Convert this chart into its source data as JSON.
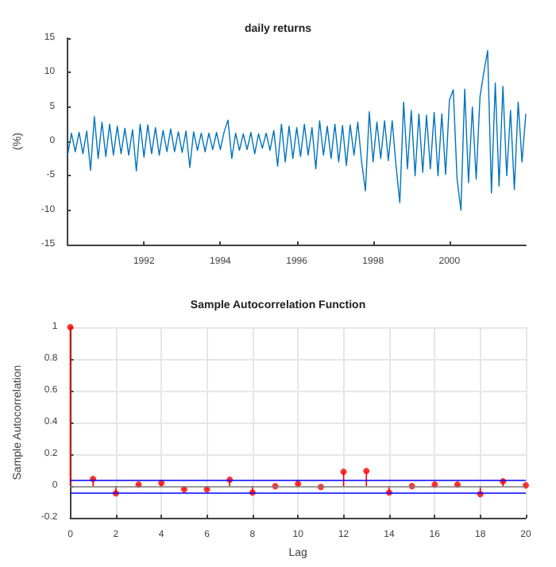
{
  "chart_data": [
    {
      "type": "line",
      "title": "daily returns",
      "ylabel": "(%)",
      "x": [
        1990,
        1990.1,
        1990.2,
        1990.3,
        1990.4,
        1990.5,
        1990.6,
        1990.7,
        1990.8,
        1990.9,
        1991,
        1991.1,
        1991.2,
        1991.3,
        1991.4,
        1991.5,
        1991.6,
        1991.7,
        1991.8,
        1991.9,
        1992,
        1992.1,
        1992.2,
        1992.3,
        1992.4,
        1992.5,
        1992.6,
        1992.7,
        1992.8,
        1992.9,
        1993,
        1993.1,
        1993.2,
        1993.3,
        1993.4,
        1993.5,
        1993.6,
        1993.7,
        1993.8,
        1993.9,
        1994,
        1994.1,
        1994.2,
        1994.3,
        1994.4,
        1994.5,
        1994.6,
        1994.7,
        1994.8,
        1994.9,
        1995,
        1995.1,
        1995.2,
        1995.3,
        1995.4,
        1995.5,
        1995.6,
        1995.7,
        1995.8,
        1995.9,
        1996,
        1996.1,
        1996.2,
        1996.3,
        1996.4,
        1996.5,
        1996.6,
        1996.7,
        1996.8,
        1996.9,
        1997,
        1997.1,
        1997.2,
        1997.3,
        1997.4,
        1997.5,
        1997.6,
        1997.7,
        1997.8,
        1997.9,
        1998,
        1998.1,
        1998.2,
        1998.3,
        1998.4,
        1998.5,
        1998.6,
        1998.7,
        1998.8,
        1998.9,
        1999,
        1999.1,
        1999.2,
        1999.3,
        1999.4,
        1999.5,
        1999.6,
        1999.7,
        1999.8,
        1999.9,
        2000,
        2000.1,
        2000.2,
        2000.3,
        2000.4,
        2000.5,
        2000.6,
        2000.7,
        2000.8,
        2000.9,
        2001,
        2001.1,
        2001.2,
        2001.3,
        2001.4,
        2001.5,
        2001.6,
        2001.7,
        2001.8,
        2001.9,
        2002
      ],
      "series": [
        {
          "color": "#0072bd",
          "values": [
            -2,
            1.2,
            -1.5,
            1.3,
            -1.8,
            1.5,
            -4.2,
            3.6,
            -2.5,
            2.8,
            -2.2,
            2.5,
            -2,
            2.2,
            -1.8,
            1.9,
            -2,
            1.7,
            -4.3,
            2.5,
            -2.3,
            2.4,
            -1.8,
            2,
            -2,
            1.6,
            -1.5,
            1.8,
            -1.5,
            1.4,
            -1.6,
            1.5,
            -3.8,
            1.4,
            -1.3,
            1.2,
            -1.5,
            1.2,
            -1.2,
            1.3,
            -1.2,
            1.4,
            3.1,
            -2.5,
            1.2,
            -1.3,
            1.1,
            -1.2,
            1.3,
            -1.8,
            1.1,
            -1,
            1.2,
            -1.3,
            1.6,
            -3.6,
            2.5,
            -3,
            2.2,
            -2.5,
            2,
            -2.2,
            2.5,
            -2,
            2,
            -4,
            3,
            -2,
            2.2,
            -2.5,
            2.5,
            -3,
            2.3,
            -3.5,
            2.4,
            -2,
            2.8,
            -3,
            -7.2,
            4.3,
            -3,
            2.8,
            -2.5,
            3,
            -2.8,
            3,
            -3.5,
            -8.9,
            5.7,
            -4,
            4.5,
            -5,
            4,
            -4.5,
            3.8,
            -4,
            4.2,
            -5,
            4,
            -4.8,
            6,
            7.5,
            -5.5,
            -10,
            7.6,
            -6,
            5,
            -5.5,
            6.5,
            10,
            13.2,
            -7.5,
            8.5,
            -6.5,
            8,
            -5,
            4.5,
            -7,
            5.7,
            -3,
            4
          ]
        }
      ],
      "xlim": [
        1990,
        2002
      ],
      "xticks": [
        1992,
        1994,
        1996,
        1998,
        2000
      ],
      "ylim": [
        -15,
        15
      ],
      "yticks": [
        -15,
        -10,
        -5,
        0,
        5,
        10,
        15
      ],
      "grid": false,
      "marker": "none",
      "line_style": "solid"
    },
    {
      "type": "lollipop",
      "title": "Sample Autocorrelation Function",
      "xlabel": "Lag",
      "ylabel": "Sample Autocorrelation",
      "x": [
        0,
        1,
        2,
        3,
        4,
        5,
        6,
        7,
        8,
        9,
        10,
        11,
        12,
        13,
        14,
        15,
        16,
        17,
        18,
        19,
        20
      ],
      "series": [
        {
          "color": "#ff0000",
          "values": [
            1,
            0.045,
            -0.045,
            0.01,
            0.02,
            -0.02,
            -0.02,
            0.04,
            -0.04,
            0,
            0.015,
            -0.005,
            0.09,
            0.095,
            -0.04,
            0,
            0.01,
            0.01,
            -0.05,
            0.03,
            0.005
          ]
        }
      ],
      "xlim": [
        0,
        20
      ],
      "xticks": [
        0,
        2,
        4,
        6,
        8,
        10,
        12,
        14,
        16,
        18,
        20
      ],
      "ylim": [
        -0.2,
        1
      ],
      "yticks": [
        -0.2,
        0,
        0.2,
        0.4,
        0.6,
        0.8,
        1
      ],
      "grid": true,
      "marker": "circle",
      "ref_lines": [
        {
          "axis": "y",
          "value": 0.035,
          "color": "#0000ff"
        },
        {
          "axis": "y",
          "value": -0.035,
          "color": "#0000ff"
        },
        {
          "axis": "y",
          "value": 0,
          "color": "#808080"
        }
      ]
    }
  ]
}
